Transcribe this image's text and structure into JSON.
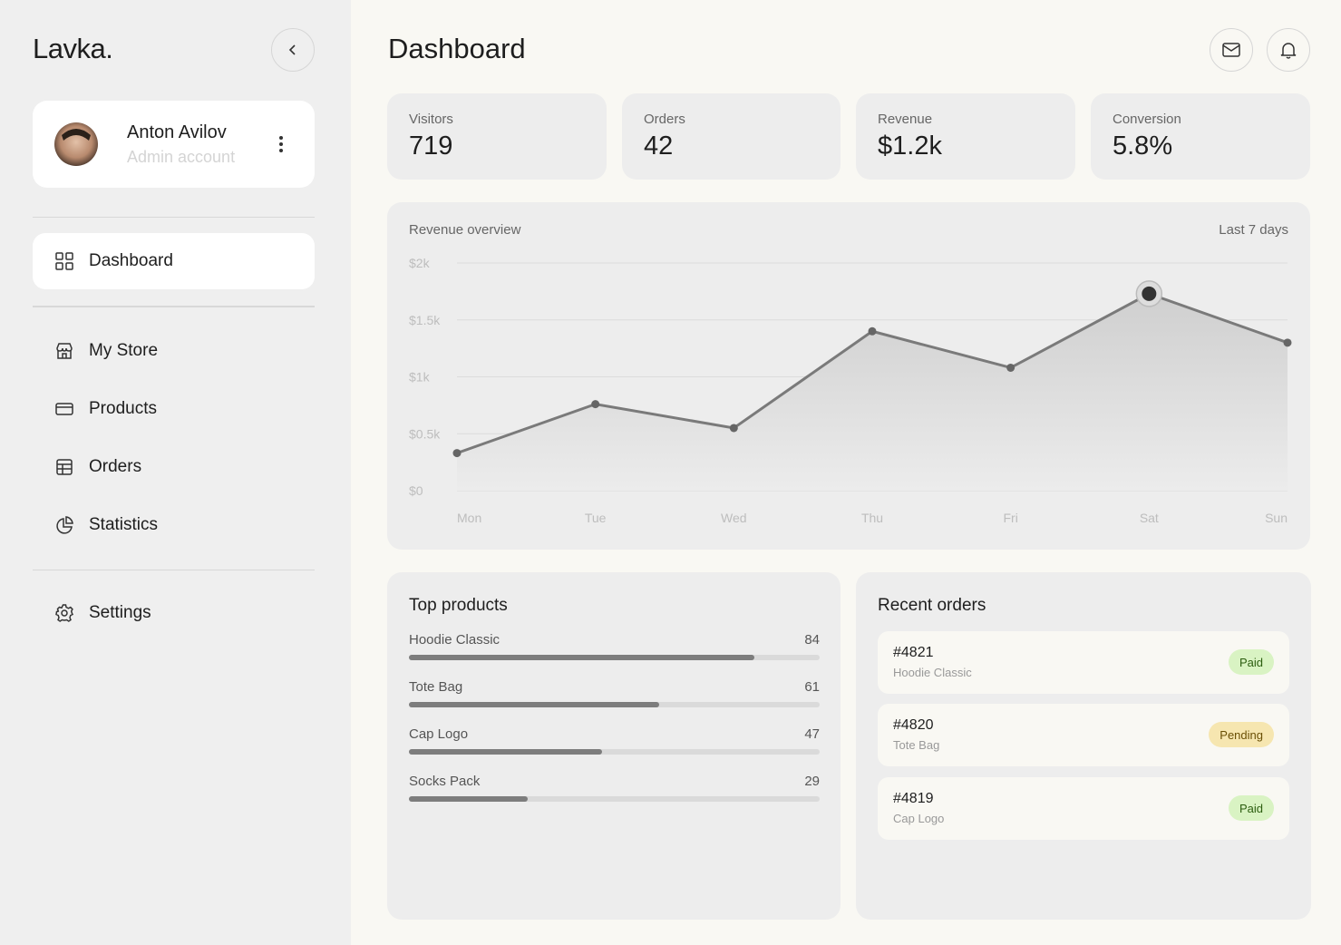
{
  "sidebar": {
    "brand": "Lavka.",
    "user": {
      "name": "Anton Avilov",
      "role": "Admin account"
    },
    "nav": [
      "Dashboard",
      "My Store",
      "Products",
      "Orders",
      "Statistics"
    ],
    "settings": "Settings"
  },
  "header": {
    "title": "Dashboard"
  },
  "stats": [
    {
      "label": "Visitors",
      "value": "719"
    },
    {
      "label": "Orders",
      "value": "42"
    },
    {
      "label": "Revenue",
      "value": "$1.2k"
    },
    {
      "label": "Conversion",
      "value": "5.8%"
    }
  ],
  "chart_data": {
    "type": "line",
    "title": "Revenue overview",
    "subtitle": "Last 7 days",
    "categories": [
      "Mon",
      "Tue",
      "Wed",
      "Thu",
      "Fri",
      "Sat",
      "Sun"
    ],
    "values": [
      330,
      760,
      550,
      1400,
      1080,
      1730,
      1300
    ],
    "color": "#7a7a7a",
    "ylim": [
      0,
      2000
    ],
    "yticks": [
      {
        "value": 0,
        "label": "$0"
      },
      {
        "value": 500,
        "label": "$0.5k"
      },
      {
        "value": 1000,
        "label": "$1k"
      },
      {
        "value": 1500,
        "label": "$1.5k"
      },
      {
        "value": 2000,
        "label": "$2k"
      }
    ],
    "grid": true
  },
  "top_products": {
    "title": "Top products",
    "items": [
      {
        "name": "Hoodie Classic",
        "value": 84
      },
      {
        "name": "Tote Bag",
        "value": 61
      },
      {
        "name": "Cap Logo",
        "value": 47
      },
      {
        "name": "Socks Pack",
        "value": 29
      }
    ]
  },
  "recent_orders": {
    "title": "Recent orders",
    "items": [
      {
        "id": "#4821",
        "product": "Hoodie Classic",
        "status": "Paid"
      },
      {
        "id": "#4820",
        "product": "Tote Bag",
        "status": "Pending"
      },
      {
        "id": "#4819",
        "product": "Cap Logo",
        "status": "Paid"
      }
    ]
  }
}
